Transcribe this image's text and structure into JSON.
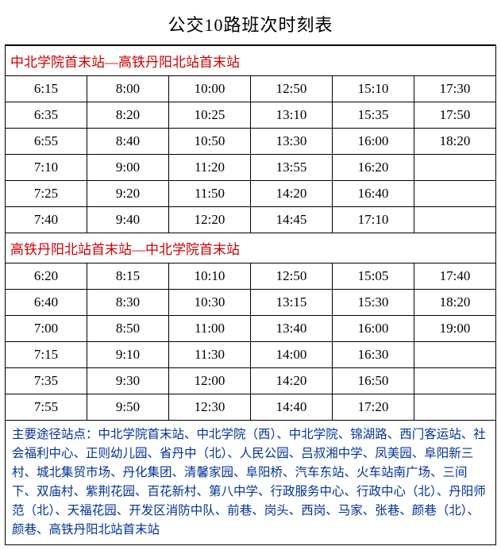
{
  "title": "公交10路班次时刻表",
  "direction_color": "#cc0000",
  "footer_color": "#003399",
  "directions": [
    {
      "label": "中北学院首末站—高铁丹阳北站首末站",
      "rows": [
        [
          "6:15",
          "8:00",
          "10:00",
          "12:50",
          "15:10",
          "17:30"
        ],
        [
          "6:35",
          "8:20",
          "10:25",
          "13:10",
          "15:35",
          "17:50"
        ],
        [
          "6:55",
          "8:40",
          "10:50",
          "13:30",
          "16:00",
          "18:20"
        ],
        [
          "7:10",
          "9:00",
          "11:20",
          "13:55",
          "16:20",
          ""
        ],
        [
          "7:25",
          "9:20",
          "11:50",
          "14:20",
          "16:40",
          ""
        ],
        [
          "7:40",
          "9:40",
          "12:20",
          "14:45",
          "17:10",
          ""
        ]
      ]
    },
    {
      "label": "高铁丹阳北站首末站—中北学院首末站",
      "rows": [
        [
          "6:20",
          "8:15",
          "10:10",
          "12:50",
          "15:05",
          "17:40"
        ],
        [
          "6:40",
          "8:30",
          "10:30",
          "13:15",
          "15:30",
          "18:20"
        ],
        [
          "7:00",
          "8:50",
          "11:00",
          "13:40",
          "16:00",
          "19:00"
        ],
        [
          "7:15",
          "9:10",
          "11:30",
          "14:00",
          "16:30",
          ""
        ],
        [
          "7:35",
          "9:30",
          "12:00",
          "14:20",
          "16:50",
          ""
        ],
        [
          "7:55",
          "9:50",
          "12:30",
          "14:40",
          "17:20",
          ""
        ]
      ]
    }
  ],
  "footer_text": "主要途径站点：中北学院首末站、中北学院（西）、中北学院、锦湖路、西门客运站、社会福利中心、正则幼儿园、省丹中（北）、人民公园、吕叔湘中学、凤美园、阜阳新三村、城北集贸市场、丹化集团、清馨家园、阜阳桥、汽车东站、火车站南广场、三间下、双庙村、紫荆花园、百花新村、第八中学、行政服务中心、行政中心（北）、丹阳师范（北）、天福花园、开发区消防中队、前巷、岗头、西岗、马家、张巷、颜巷（北）、颜巷、高铁丹阳北站首末站"
}
